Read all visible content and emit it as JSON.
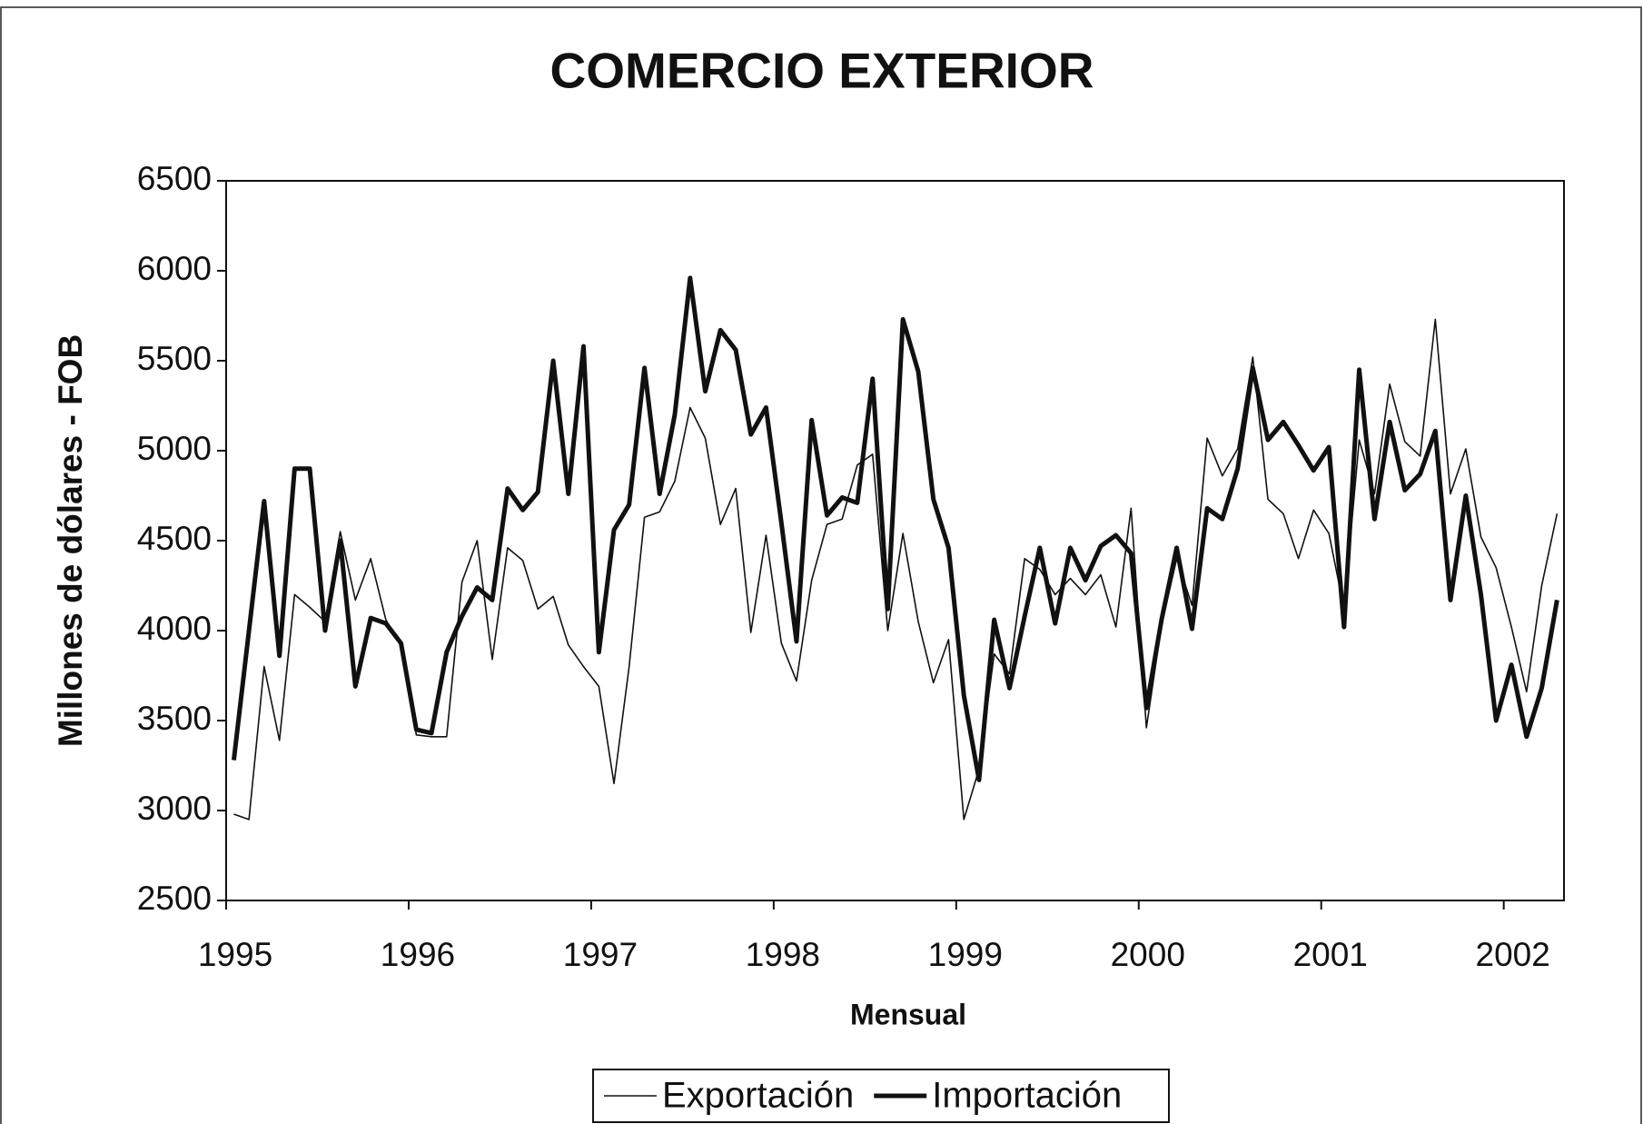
{
  "chart_data": {
    "type": "line",
    "title": "COMERCIO EXTERIOR",
    "x_label": "Mensual",
    "y_label": "Millones de dólares - FOB",
    "x": [
      1995.042,
      1995.125,
      1995.208,
      1995.292,
      1995.375,
      1995.458,
      1995.542,
      1995.625,
      1995.708,
      1995.792,
      1995.875,
      1995.958,
      1996.042,
      1996.125,
      1996.208,
      1996.292,
      1996.375,
      1996.458,
      1996.542,
      1996.625,
      1996.708,
      1996.792,
      1996.875,
      1996.958,
      1997.042,
      1997.125,
      1997.208,
      1997.292,
      1997.375,
      1997.458,
      1997.542,
      1997.625,
      1997.708,
      1997.792,
      1997.875,
      1997.958,
      1998.042,
      1998.125,
      1998.208,
      1998.292,
      1998.375,
      1998.458,
      1998.542,
      1998.625,
      1998.708,
      1998.792,
      1998.875,
      1998.958,
      1999.042,
      1999.125,
      1999.208,
      1999.292,
      1999.375,
      1999.458,
      1999.542,
      1999.625,
      1999.708,
      1999.792,
      1999.875,
      1999.958,
      2000.042,
      2000.125,
      2000.208,
      2000.292,
      2000.375,
      2000.458,
      2000.542,
      2000.625,
      2000.708,
      2000.792,
      2000.875,
      2000.958,
      2001.042,
      2001.125,
      2001.208,
      2001.292,
      2001.375,
      2001.458,
      2001.542,
      2001.625,
      2001.708,
      2001.792,
      2001.875,
      2001.958,
      2002.042,
      2002.125,
      2002.208,
      2002.292
    ],
    "series": [
      {
        "name": "Exportación",
        "color": "#111111",
        "width": 1.6,
        "values": [
          2980,
          2950,
          3800,
          3390,
          4200,
          4130,
          4050,
          4550,
          4170,
          4400,
          4060,
          3920,
          3420,
          3410,
          3410,
          4270,
          4500,
          3840,
          4460,
          4390,
          4120,
          4190,
          3920,
          3800,
          3690,
          3150,
          3800,
          4630,
          4660,
          4830,
          5240,
          5070,
          4590,
          4790,
          3990,
          4530,
          3930,
          3720,
          4280,
          4590,
          4620,
          4920,
          4980,
          4000,
          4540,
          4050,
          3710,
          3950,
          2950,
          3230,
          3870,
          3760,
          4400,
          4340,
          4200,
          4290,
          4200,
          4310,
          4020,
          4680,
          3460,
          4030,
          4400,
          4140,
          5070,
          4860,
          5010,
          5520,
          4730,
          4650,
          4400,
          4670,
          4540,
          4120,
          5060,
          4760,
          5370,
          5050,
          4970,
          5730,
          4760,
          5010,
          4520,
          4350,
          4020,
          3660,
          4250,
          4650
        ]
      },
      {
        "name": "Importación",
        "color": "#111111",
        "width": 5,
        "values": [
          3280,
          4000,
          4720,
          3860,
          4900,
          4900,
          4000,
          4500,
          3690,
          4070,
          4040,
          3930,
          3450,
          3430,
          3880,
          4080,
          4240,
          4170,
          4790,
          4670,
          4770,
          5500,
          4760,
          5580,
          3880,
          4560,
          4700,
          5460,
          4760,
          5200,
          5960,
          5330,
          5670,
          5560,
          5090,
          5240,
          4600,
          3940,
          5170,
          4640,
          4740,
          4710,
          5400,
          4120,
          5730,
          5440,
          4730,
          4460,
          3640,
          3170,
          4060,
          3680,
          4080,
          4460,
          4040,
          4460,
          4280,
          4470,
          4530,
          4430,
          3570,
          4060,
          4460,
          4010,
          4680,
          4620,
          4900,
          5460,
          5060,
          5160,
          5030,
          4890,
          5020,
          4020,
          5450,
          4620,
          5160,
          4780,
          4870,
          5110,
          4170,
          4750,
          4200,
          3500,
          3810,
          3410,
          3680,
          4170
        ]
      }
    ],
    "xlim": [
      1995,
      2002.33
    ],
    "xticks": [
      1995,
      1996,
      1997,
      1998,
      1999,
      2000,
      2001,
      2002
    ],
    "ylim": [
      2500,
      6500
    ],
    "yticks": [
      2500,
      3000,
      3500,
      4000,
      4500,
      5000,
      5500,
      6000,
      6500
    ],
    "grid": false,
    "legend": "bottom"
  }
}
